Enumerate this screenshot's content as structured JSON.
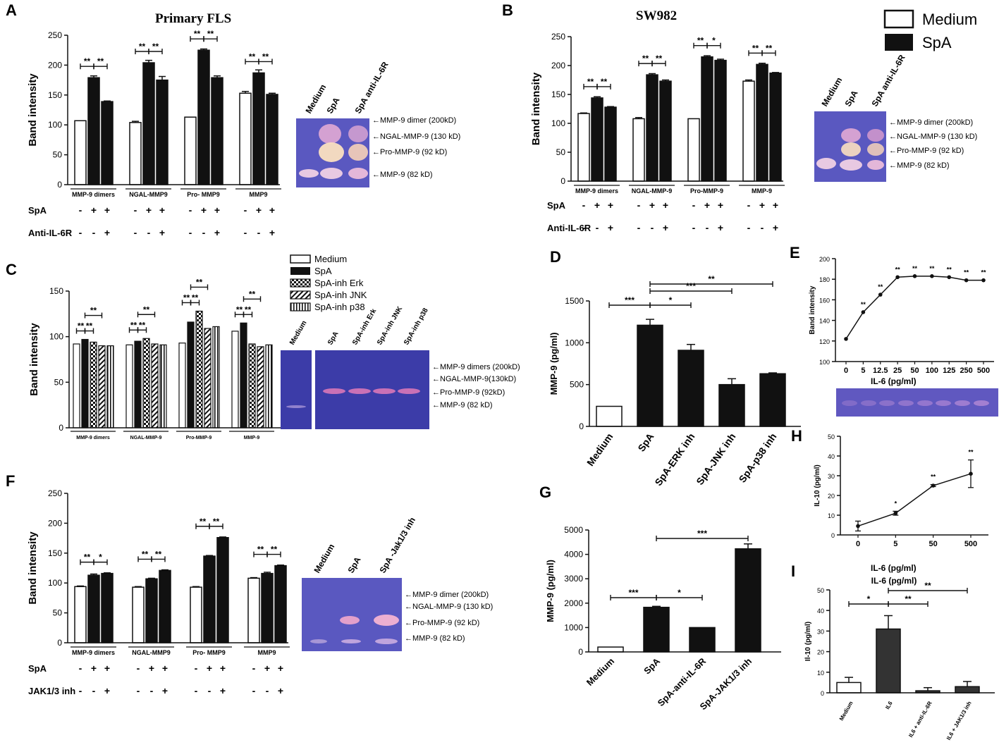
{
  "panels": {
    "A": {
      "label": "A",
      "title": "Primary  FLS",
      "chart_data": {
        "type": "bar",
        "ylabel": "Band intensity",
        "ylim": [
          0,
          250
        ],
        "yticks": [
          0,
          50,
          100,
          150,
          200,
          250
        ],
        "groups": [
          "MMP-9 dimers",
          "NGAL-MMP9",
          "Pro- MMP9",
          "MMP9"
        ],
        "series": [
          {
            "name": "Medium",
            "values": [
              107,
              104,
              113,
              153
            ]
          },
          {
            "name": "SpA",
            "values": [
              179,
              204,
              225,
              187
            ]
          },
          {
            "name": "SpA anti-IL-6R",
            "values": [
              139,
              175,
              179,
              151
            ]
          }
        ],
        "errors": [
          [
            0,
            2,
            0,
            3
          ],
          [
            3,
            4,
            2,
            5
          ],
          [
            1,
            6,
            3,
            2
          ]
        ],
        "sig": [
          [
            "**",
            "**"
          ],
          [
            "**",
            "**"
          ],
          [
            "**",
            "**"
          ],
          [
            "**",
            "**"
          ]
        ]
      },
      "condition_rows": [
        {
          "name": "SpA",
          "marks": [
            "-",
            "+",
            "+"
          ]
        },
        {
          "name": "Anti-IL-6R",
          "marks": [
            "-",
            "-",
            "+"
          ]
        }
      ],
      "gel": {
        "lanes": [
          "Medium",
          "SpA",
          "SpA anti-IL-6R"
        ],
        "bands": [
          "MMP-9 dimer (200kD)",
          "NGAL-MMP-9 (130 kD)",
          "Pro-MMP-9 (92 kD)",
          "MMP-9 (82 kD)"
        ]
      }
    },
    "B": {
      "label": "B",
      "title": "SW982",
      "chart_data": {
        "type": "bar",
        "ylabel": "Band intensity",
        "ylim": [
          0,
          250
        ],
        "yticks": [
          0,
          50,
          100,
          150,
          200,
          250
        ],
        "groups": [
          "MMP-9 dimers",
          "NGAL-MMP-9",
          "Pro-MMP-9",
          "MMP-9"
        ],
        "series": [
          {
            "name": "Medium",
            "values": [
              117,
              108,
              108,
              173
            ]
          },
          {
            "name": "SpA",
            "values": [
              144,
              184,
              215,
              202
            ]
          },
          {
            "name": "SpA anti-IL-6R",
            "values": [
              128,
              173,
              209,
              187
            ]
          }
        ],
        "errors": [
          [
            1,
            2,
            0,
            2
          ],
          [
            2,
            2,
            2,
            2
          ],
          [
            1,
            2,
            2,
            1
          ]
        ],
        "sig": [
          [
            "**",
            "**"
          ],
          [
            "**",
            "**"
          ],
          [
            "**",
            "*"
          ],
          [
            "**",
            "**"
          ]
        ]
      },
      "condition_rows": [
        {
          "name": "SpA",
          "marks": [
            "-",
            "+",
            "+"
          ]
        },
        {
          "name": "Anti-IL-6R",
          "marks": [
            "-",
            "-",
            "+"
          ]
        }
      ],
      "legend": [
        "Medium",
        "SpA"
      ],
      "gel": {
        "lanes": [
          "Medium",
          "SpA",
          "SpA anti-IL-6R"
        ],
        "bands": [
          "MMP-9 dimer (200kD)",
          "NGAL-MMP-9 (130 kD)",
          "Pro-MMP-9 (92 kD)",
          "MMP-9 (82 kD)"
        ]
      }
    },
    "C": {
      "label": "C",
      "chart_data": {
        "type": "bar",
        "ylabel": "Band intensity",
        "ylim": [
          0,
          150
        ],
        "yticks": [
          0,
          50,
          100,
          150
        ],
        "groups": [
          "MMP-9 dimers",
          "NGAL-MMP-9",
          "Pro-MMP-9",
          "MMP-9"
        ],
        "series": [
          {
            "name": "Medium",
            "values": [
              92,
              91,
              93,
              106
            ]
          },
          {
            "name": "SpA",
            "values": [
              97,
              95,
              116,
              115
            ]
          },
          {
            "name": "SpA-inh Erk",
            "values": [
              94,
              98,
              128,
              92
            ]
          },
          {
            "name": "SpA-inh JNK",
            "values": [
              90,
              92,
              109,
              89
            ]
          },
          {
            "name": "SpA-inh p38",
            "values": [
              90,
              91,
              111,
              91
            ]
          }
        ],
        "sig": [
          "**",
          "**",
          "**",
          "**",
          "**",
          "**",
          "**",
          "**",
          "**",
          "**",
          "**",
          "**"
        ]
      },
      "legend": [
        "Medium",
        "SpA",
        "SpA-inh Erk",
        "SpA-inh JNK",
        "SpA-inh p38"
      ],
      "gel": {
        "lanes": [
          "Medium",
          "SpA",
          "SpA-inh Erk",
          "SpA-inh JNK",
          "SpA-inh p38"
        ],
        "bands": [
          "MMP-9 dimers (200kD)",
          "NGAL-MMP-9(130kD)",
          "Pro-MMP-9 (92kD)",
          "MMP-9 (82 kD)"
        ]
      }
    },
    "D": {
      "label": "D",
      "chart_data": {
        "type": "bar",
        "ylabel": "MMP-9 (pg/ml)",
        "ylim": [
          0,
          1500
        ],
        "yticks": [
          0,
          500,
          1000,
          1500
        ],
        "categories": [
          "Medium",
          "SpA",
          "SpA-ERK inh",
          "SpA-JNK inh",
          "SpA-p38 inh"
        ],
        "values": [
          240,
          1210,
          910,
          500,
          630
        ],
        "errors": [
          0,
          70,
          70,
          70,
          10
        ],
        "sig": [
          "***",
          "*",
          "***",
          "**"
        ]
      }
    },
    "E": {
      "label": "E",
      "chart_data": {
        "type": "line",
        "ylabel": "Band intensity",
        "xlabel": "IL-6 (pg/ml)",
        "ylim": [
          100,
          200
        ],
        "yticks": [
          100,
          120,
          140,
          160,
          180,
          200
        ],
        "x": [
          "0",
          "5",
          "12.5",
          "25",
          "50",
          "100",
          "125",
          "250",
          "500"
        ],
        "values": [
          122,
          148,
          165,
          182,
          183,
          183,
          182,
          179,
          179
        ],
        "sig": [
          "",
          "**",
          "**",
          "**",
          "**",
          "**",
          "**",
          "**",
          "**"
        ]
      }
    },
    "F": {
      "label": "F",
      "chart_data": {
        "type": "bar",
        "ylabel": "Band intensity",
        "ylim": [
          0,
          250
        ],
        "yticks": [
          0,
          50,
          100,
          150,
          200,
          250
        ],
        "groups": [
          "MMP-9 dimers",
          "NGAL-MMP9",
          "Pro- MMP9",
          "MMP9"
        ],
        "series": [
          {
            "name": "Medium",
            "values": [
              94,
              93,
              93,
              108
            ]
          },
          {
            "name": "SpA",
            "values": [
              113,
              107,
              145,
              116
            ]
          },
          {
            "name": "SpA-Jak1/3 inh",
            "values": [
              116,
              121,
              176,
              129
            ]
          }
        ],
        "errors": [
          [
            1,
            1,
            1,
            1
          ],
          [
            2,
            1,
            1,
            2
          ],
          [
            1,
            1,
            1,
            1
          ]
        ],
        "sig": [
          [
            "**",
            "*"
          ],
          [
            "**",
            "**"
          ],
          [
            "**",
            "**"
          ],
          [
            "**",
            "**"
          ]
        ]
      },
      "condition_rows": [
        {
          "name": "SpA",
          "marks": [
            "-",
            "+",
            "+"
          ]
        },
        {
          "name": "JAK1/3 inh",
          "marks": [
            "-",
            "-",
            "+"
          ]
        }
      ],
      "gel": {
        "lanes": [
          "Medium",
          "SpA",
          "SpA -Jak1/3 inh"
        ],
        "bands": [
          "MMP-9 dimer (200kD)",
          "NGAL-MMP-9 (130 kD)",
          "Pro-MMP-9 (92 kD)",
          "MMP-9 (82 kD)"
        ]
      }
    },
    "G": {
      "label": "G",
      "chart_data": {
        "type": "bar",
        "ylabel": "MMP-9 (pg/ml)",
        "ylim": [
          0,
          5000
        ],
        "yticks": [
          0,
          1000,
          2000,
          3000,
          4000,
          5000
        ],
        "categories": [
          "Medium",
          "SpA",
          "SpA-anti-IL-6R",
          "SpA-JAK1/3 inh"
        ],
        "values": [
          200,
          1830,
          1000,
          4230
        ],
        "errors": [
          0,
          40,
          0,
          200
        ],
        "sig": [
          "***",
          "*",
          "***"
        ]
      }
    },
    "H": {
      "label": "H",
      "chart_data": {
        "type": "line",
        "ylabel": "IL-10 (pg/ml)",
        "xlabel": "IL-6 (pg/ml)",
        "ylim": [
          0,
          50
        ],
        "yticks": [
          0,
          10,
          20,
          30,
          40,
          50
        ],
        "x": [
          "0",
          "5",
          "50",
          "500"
        ],
        "values": [
          4.5,
          11,
          25,
          31
        ],
        "errors": [
          2.5,
          1,
          0.5,
          7
        ],
        "sig": [
          "",
          "*",
          "**",
          "**"
        ]
      }
    },
    "I": {
      "label": "I",
      "chart_data": {
        "type": "bar",
        "ylabel": "Il-10 (pg/ml)",
        "ylim": [
          0,
          50
        ],
        "yticks": [
          0,
          10,
          20,
          30,
          40,
          50
        ],
        "categories": [
          "Medium",
          "IL6",
          "IL6 + anti-IL-6R",
          "IL6 + JAK1/3 inh"
        ],
        "values": [
          5,
          31,
          1,
          3
        ],
        "errors": [
          2.5,
          6.5,
          1.5,
          2.5
        ],
        "sig": [
          "*",
          "**",
          "**"
        ]
      }
    }
  },
  "colors": {
    "black": "#111111",
    "white": "#ffffff",
    "gel": "#5c5cc0",
    "gel_dark": "#3e3e9e",
    "band": "#f3c6dc"
  }
}
